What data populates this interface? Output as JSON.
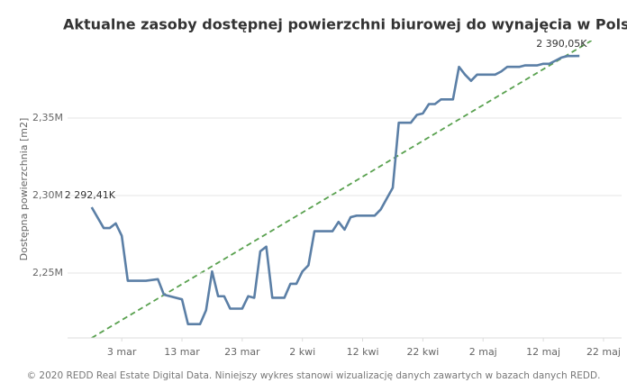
{
  "chart_data": {
    "type": "line",
    "title": "Aktualne zasoby dostępnej powierzchni biurowej do wynajęcia w Polsce",
    "y_label": "Dostępna powierzchnia [m2]",
    "footer": "© 2020 REDD Real Estate Digital Data. Niniejszy wykres stanowi wizualizację danych zawartych w bazach danych REDD.",
    "color": "#5b7fa6",
    "x": [
      "02-27",
      "02-29",
      "03-01",
      "03-02",
      "03-03",
      "03-04",
      "03-07",
      "03-09",
      "03-10",
      "03-13",
      "03-14",
      "03-16",
      "03-17",
      "03-18",
      "03-19",
      "03-20",
      "03-21",
      "03-23",
      "03-24",
      "03-25",
      "03-26",
      "03-27",
      "03-28",
      "03-30",
      "03-31",
      "04-01",
      "04-02",
      "04-03",
      "04-04",
      "04-07",
      "04-08",
      "04-09",
      "04-10",
      "04-11",
      "04-14",
      "04-15",
      "04-16",
      "04-17",
      "04-18",
      "04-20",
      "04-21",
      "04-22",
      "04-23",
      "04-24",
      "04-25",
      "04-27",
      "04-28",
      "04-29",
      "04-30",
      "05-01",
      "05-04",
      "05-05",
      "05-06",
      "05-08",
      "05-09",
      "05-11",
      "05-12",
      "05-13",
      "05-14",
      "05-15",
      "05-16",
      "05-18"
    ],
    "values": [
      2292.41,
      2279,
      2279,
      2282,
      2274,
      2245,
      2245,
      2246,
      2236,
      2233,
      2217,
      2217,
      2226,
      2251,
      2235,
      2235,
      2227,
      2227,
      2235,
      2234,
      2264,
      2267,
      2234,
      2234,
      2243,
      2243,
      2251,
      2255,
      2277,
      2277,
      2283,
      2278,
      2286,
      2287,
      2287,
      2291,
      2298,
      2305,
      2347,
      2347,
      2352,
      2353,
      2359,
      2359,
      2362,
      2362,
      2383,
      2378,
      2374,
      2378,
      2378,
      2380,
      2383,
      2383,
      2384,
      2384,
      2385,
      2385,
      2387,
      2389,
      2390,
      2390.05
    ],
    "value_labels": [
      "2 292,41K",
      null,
      null,
      null,
      null,
      null,
      null,
      null,
      null,
      null,
      null,
      null,
      null,
      null,
      null,
      null,
      null,
      null,
      null,
      null,
      null,
      null,
      null,
      null,
      null,
      null,
      null,
      null,
      null,
      null,
      null,
      null,
      null,
      null,
      null,
      null,
      null,
      null,
      null,
      null,
      null,
      null,
      null,
      null,
      null,
      null,
      null,
      null,
      null,
      null,
      null,
      null,
      null,
      null,
      null,
      null,
      null,
      null,
      null,
      null,
      null,
      "2 390,05K"
    ],
    "trend_line": {
      "color": "#59a14f",
      "x": [
        "02-27",
        "05-20"
      ],
      "values": [
        2208.1,
        2400
      ]
    },
    "xlim": [
      "02-23",
      "05-25"
    ],
    "xticks": [
      {
        "value": "03-03",
        "label": "3 mar"
      },
      {
        "value": "03-13",
        "label": "13 mar"
      },
      {
        "value": "03-23",
        "label": "23 mar"
      },
      {
        "value": "04-02",
        "label": "2 kwi"
      },
      {
        "value": "04-12",
        "label": "12 kwi"
      },
      {
        "value": "04-22",
        "label": "22 kwi"
      },
      {
        "value": "05-02",
        "label": "2 maj"
      },
      {
        "value": "05-12",
        "label": "12 maj"
      },
      {
        "value": "05-22",
        "label": "22 maj"
      }
    ],
    "ylim": [
      2208.1,
      2400
    ],
    "yticks": [
      {
        "value": 2250,
        "label": "2,25M"
      },
      {
        "value": 2300,
        "label": "2,30M"
      },
      {
        "value": 2350,
        "label": "2,35M"
      }
    ],
    "grid": true
  }
}
